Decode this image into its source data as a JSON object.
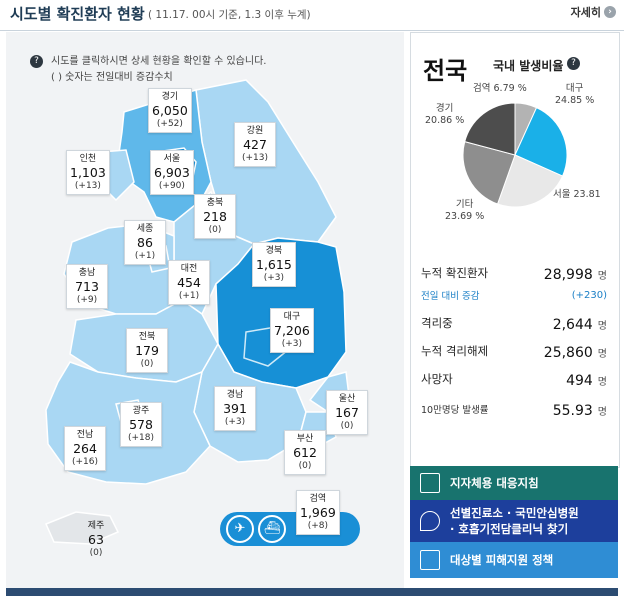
{
  "header": {
    "title": "시도별 확진환자 현황",
    "subtitle": "( 11.17. 00시 기준, 1.3 이후 누계)",
    "more_label": "자세히"
  },
  "note": {
    "line1": "시도를 클릭하시면 상세 현황을 확인할 수 있습니다.",
    "line2": "( ) 숫자는 전일대비 증감수치"
  },
  "regions": [
    {
      "name": "경기",
      "value": "6,050",
      "delta": "(+52)"
    },
    {
      "name": "강원",
      "value": "427",
      "delta": "(+13)"
    },
    {
      "name": "인천",
      "value": "1,103",
      "delta": "(+13)"
    },
    {
      "name": "서울",
      "value": "6,903",
      "delta": "(+90)"
    },
    {
      "name": "충북",
      "value": "218",
      "delta": "(0)"
    },
    {
      "name": "세종",
      "value": "86",
      "delta": "(+1)"
    },
    {
      "name": "경북",
      "value": "1,615",
      "delta": "(+3)"
    },
    {
      "name": "충남",
      "value": "713",
      "delta": "(+9)"
    },
    {
      "name": "대전",
      "value": "454",
      "delta": "(+1)"
    },
    {
      "name": "대구",
      "value": "7,206",
      "delta": "(+3)"
    },
    {
      "name": "전북",
      "value": "179",
      "delta": "(0)"
    },
    {
      "name": "경남",
      "value": "391",
      "delta": "(+3)"
    },
    {
      "name": "울산",
      "value": "167",
      "delta": "(0)"
    },
    {
      "name": "광주",
      "value": "578",
      "delta": "(+18)"
    },
    {
      "name": "전남",
      "value": "264",
      "delta": "(+16)"
    },
    {
      "name": "부산",
      "value": "612",
      "delta": "(0)"
    },
    {
      "name": "검역",
      "value": "1,969",
      "delta": "(+8)"
    },
    {
      "name": "제주",
      "value": "63",
      "delta": "(0)"
    }
  ],
  "toggle": {
    "icons": [
      "airplane-icon",
      "ship-icon"
    ]
  },
  "national": {
    "title": "전국",
    "ratio_title": "국내 발생비율",
    "pie": [
      {
        "label": "검역",
        "pct": "6.79 %",
        "value": 6.79,
        "color": "#b3b3b3"
      },
      {
        "label": "대구",
        "pct": "24.85 %",
        "value": 24.85,
        "color": "#1ab0e8"
      },
      {
        "label": "서울",
        "pct": "23.81",
        "value": 23.81,
        "color": "#e8e8e8"
      },
      {
        "label": "기타",
        "pct": "23.69 %",
        "value": 23.69,
        "color": "#8e8e8e"
      },
      {
        "label": "경기",
        "pct": "20.86 %",
        "value": 20.86,
        "color": "#4d4d4d"
      }
    ],
    "stats": [
      {
        "label": "누적 확진환자",
        "value": "28,998",
        "unit": "명"
      },
      {
        "label": "전일 대비 증감",
        "value": "(+230)",
        "unit": ""
      },
      {
        "label": "격리중",
        "value": "2,644",
        "unit": "명"
      },
      {
        "label": "누적 격리해제",
        "value": "25,860",
        "unit": "명"
      },
      {
        "label": "사망자",
        "value": "494",
        "unit": "명"
      },
      {
        "label": "10만명당 발생률",
        "value": "55.93",
        "unit": "명"
      }
    ]
  },
  "buttons": [
    {
      "label": "지자체용 대응지침",
      "icon": "document-check-icon"
    },
    {
      "label": "선별진료소 · 국민안심병원",
      "label2": "· 호흡기전담클리닉 찾기",
      "icon": "location-pin-icon"
    },
    {
      "label": "대상별 피해지원 정책",
      "icon": "folder-icon"
    }
  ],
  "colors": {
    "map_light": "#a9d7f3",
    "map_mid": "#5fb8ea",
    "map_dark": "#1790d6",
    "header_text": "#1f3c55"
  }
}
